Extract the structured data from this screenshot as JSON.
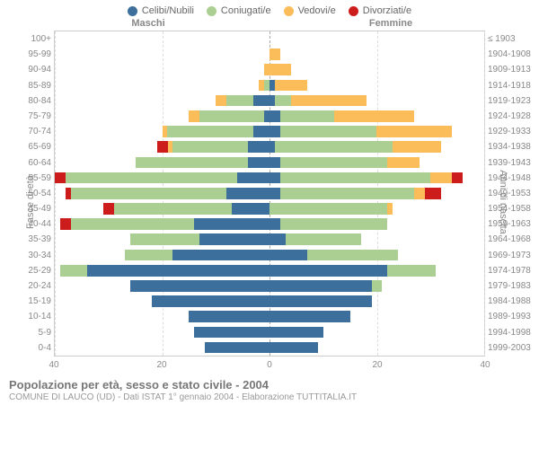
{
  "legend": {
    "items": [
      {
        "label": "Celibi/Nubili",
        "color": "#3c6f9c"
      },
      {
        "label": "Coniugati/e",
        "color": "#abcf93"
      },
      {
        "label": "Vedovi/e",
        "color": "#fbbd5a"
      },
      {
        "label": "Divorziati/e",
        "color": "#cd1c1c"
      }
    ]
  },
  "header": {
    "male": "Maschi",
    "female": "Femmine"
  },
  "axis_labels": {
    "left": "Fasce di età",
    "right": "Anni di nascita"
  },
  "title": "Popolazione per età, sesso e stato civile - 2004",
  "subtitle": "COMUNE DI LAUCO (UD) - Dati ISTAT 1° gennaio 2004 - Elaborazione TUTTITALIA.IT",
  "chart": {
    "type": "population-pyramid",
    "xmax": 40,
    "x_ticks": [
      40,
      20,
      0,
      20,
      40
    ],
    "background_color": "#ffffff",
    "grid_color": "#dddddd",
    "rows": [
      {
        "age": "100+",
        "years": "≤ 1903",
        "m": {
          "cel": 0,
          "con": 0,
          "ved": 0,
          "div": 0
        },
        "f": {
          "cel": 0,
          "con": 0,
          "ved": 0,
          "div": 0
        }
      },
      {
        "age": "95-99",
        "years": "1904-1908",
        "m": {
          "cel": 0,
          "con": 0,
          "ved": 0,
          "div": 0
        },
        "f": {
          "cel": 0,
          "con": 0,
          "ved": 2,
          "div": 0
        }
      },
      {
        "age": "90-94",
        "years": "1909-1913",
        "m": {
          "cel": 0,
          "con": 0,
          "ved": 1,
          "div": 0
        },
        "f": {
          "cel": 0,
          "con": 0,
          "ved": 4,
          "div": 0
        }
      },
      {
        "age": "85-89",
        "years": "1914-1918",
        "m": {
          "cel": 0,
          "con": 1,
          "ved": 1,
          "div": 0
        },
        "f": {
          "cel": 1,
          "con": 0,
          "ved": 6,
          "div": 0
        }
      },
      {
        "age": "80-84",
        "years": "1919-1923",
        "m": {
          "cel": 3,
          "con": 5,
          "ved": 2,
          "div": 0
        },
        "f": {
          "cel": 1,
          "con": 3,
          "ved": 14,
          "div": 0
        }
      },
      {
        "age": "75-79",
        "years": "1924-1928",
        "m": {
          "cel": 1,
          "con": 12,
          "ved": 2,
          "div": 0
        },
        "f": {
          "cel": 2,
          "con": 10,
          "ved": 15,
          "div": 0
        }
      },
      {
        "age": "70-74",
        "years": "1929-1933",
        "m": {
          "cel": 3,
          "con": 16,
          "ved": 1,
          "div": 0
        },
        "f": {
          "cel": 2,
          "con": 18,
          "ved": 14,
          "div": 0
        }
      },
      {
        "age": "65-69",
        "years": "1934-1938",
        "m": {
          "cel": 4,
          "con": 14,
          "ved": 1,
          "div": 2
        },
        "f": {
          "cel": 1,
          "con": 22,
          "ved": 9,
          "div": 0
        }
      },
      {
        "age": "60-64",
        "years": "1939-1943",
        "m": {
          "cel": 4,
          "con": 21,
          "ved": 0,
          "div": 0
        },
        "f": {
          "cel": 2,
          "con": 20,
          "ved": 6,
          "div": 0
        }
      },
      {
        "age": "55-59",
        "years": "1944-1948",
        "m": {
          "cel": 6,
          "con": 32,
          "ved": 0,
          "div": 2
        },
        "f": {
          "cel": 2,
          "con": 28,
          "ved": 4,
          "div": 2
        }
      },
      {
        "age": "50-54",
        "years": "1949-1953",
        "m": {
          "cel": 8,
          "con": 29,
          "ved": 0,
          "div": 1
        },
        "f": {
          "cel": 2,
          "con": 25,
          "ved": 2,
          "div": 3
        }
      },
      {
        "age": "45-49",
        "years": "1954-1958",
        "m": {
          "cel": 7,
          "con": 22,
          "ved": 0,
          "div": 2
        },
        "f": {
          "cel": 0,
          "con": 22,
          "ved": 1,
          "div": 0
        }
      },
      {
        "age": "40-44",
        "years": "1959-1963",
        "m": {
          "cel": 14,
          "con": 23,
          "ved": 0,
          "div": 2
        },
        "f": {
          "cel": 2,
          "con": 20,
          "ved": 0,
          "div": 0
        }
      },
      {
        "age": "35-39",
        "years": "1964-1968",
        "m": {
          "cel": 13,
          "con": 13,
          "ved": 0,
          "div": 0
        },
        "f": {
          "cel": 3,
          "con": 14,
          "ved": 0,
          "div": 0
        }
      },
      {
        "age": "30-34",
        "years": "1969-1973",
        "m": {
          "cel": 18,
          "con": 9,
          "ved": 0,
          "div": 0
        },
        "f": {
          "cel": 7,
          "con": 17,
          "ved": 0,
          "div": 0
        }
      },
      {
        "age": "25-29",
        "years": "1974-1978",
        "m": {
          "cel": 34,
          "con": 5,
          "ved": 0,
          "div": 0
        },
        "f": {
          "cel": 22,
          "con": 9,
          "ved": 0,
          "div": 0
        }
      },
      {
        "age": "20-24",
        "years": "1979-1983",
        "m": {
          "cel": 26,
          "con": 0,
          "ved": 0,
          "div": 0
        },
        "f": {
          "cel": 19,
          "con": 2,
          "ved": 0,
          "div": 0
        }
      },
      {
        "age": "15-19",
        "years": "1984-1988",
        "m": {
          "cel": 22,
          "con": 0,
          "ved": 0,
          "div": 0
        },
        "f": {
          "cel": 19,
          "con": 0,
          "ved": 0,
          "div": 0
        }
      },
      {
        "age": "10-14",
        "years": "1989-1993",
        "m": {
          "cel": 15,
          "con": 0,
          "ved": 0,
          "div": 0
        },
        "f": {
          "cel": 15,
          "con": 0,
          "ved": 0,
          "div": 0
        }
      },
      {
        "age": "5-9",
        "years": "1994-1998",
        "m": {
          "cel": 14,
          "con": 0,
          "ved": 0,
          "div": 0
        },
        "f": {
          "cel": 10,
          "con": 0,
          "ved": 0,
          "div": 0
        }
      },
      {
        "age": "0-4",
        "years": "1999-2003",
        "m": {
          "cel": 12,
          "con": 0,
          "ved": 0,
          "div": 0
        },
        "f": {
          "cel": 9,
          "con": 0,
          "ved": 0,
          "div": 0
        }
      }
    ]
  }
}
